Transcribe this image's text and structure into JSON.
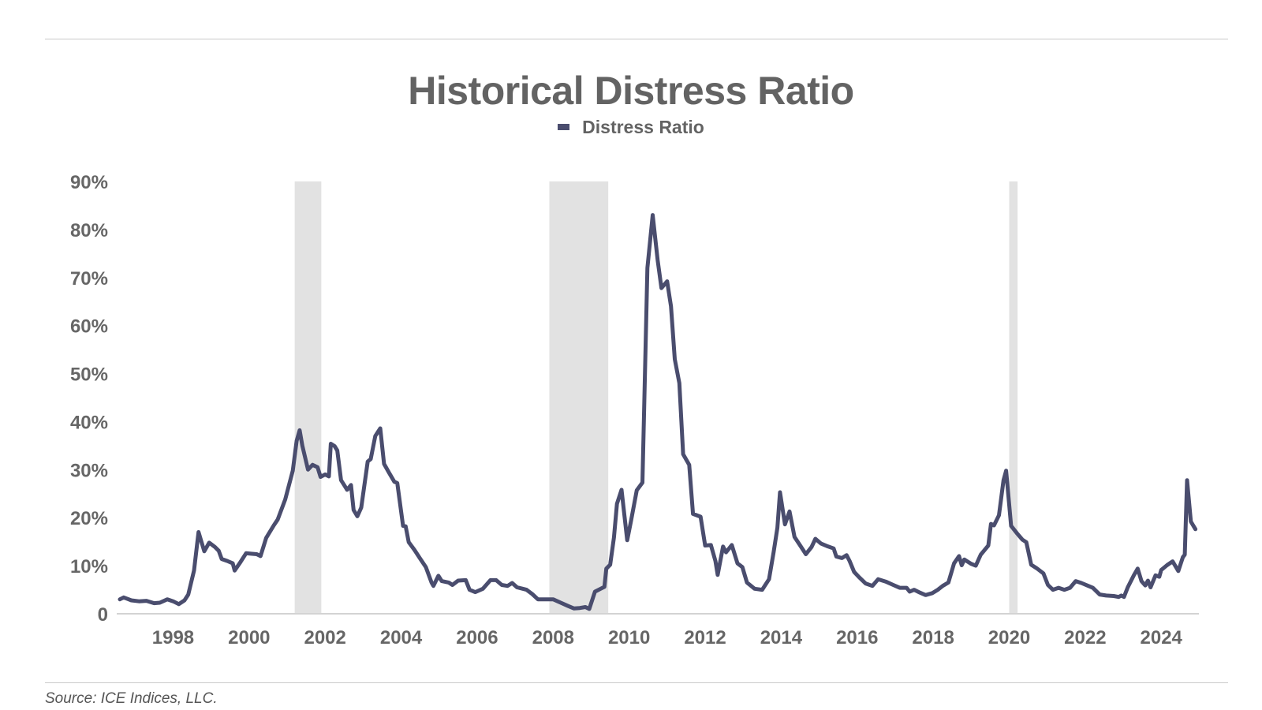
{
  "title": "Historical Distress Ratio",
  "source": "Source: ICE Indices, LLC.",
  "colors": {
    "line": "#4a4d6e",
    "recession": "#e2e2e2",
    "axis": "#d3d3d3"
  },
  "chart_data": {
    "type": "line",
    "title": "Historical Distress Ratio",
    "legend": {
      "position": "top-center",
      "entries": [
        "Distress Ratio"
      ]
    },
    "grid": false,
    "xlim": [
      1996.6,
      2024.95
    ],
    "ylim": [
      0,
      90
    ],
    "x_ticks": [
      1998,
      2000,
      2002,
      2004,
      2006,
      2008,
      2010,
      2012,
      2014,
      2016,
      2018,
      2020,
      2022,
      2024
    ],
    "y_ticks": [
      {
        "value": 0,
        "label": "0"
      },
      {
        "value": 10,
        "label": "10%"
      },
      {
        "value": 20,
        "label": "20%"
      },
      {
        "value": 30,
        "label": "30%"
      },
      {
        "value": 40,
        "label": "40%"
      },
      {
        "value": 50,
        "label": "50%"
      },
      {
        "value": 60,
        "label": "60%"
      },
      {
        "value": 70,
        "label": "70%"
      },
      {
        "value": 80,
        "label": "80%"
      },
      {
        "value": 90,
        "label": "90%"
      }
    ],
    "shaded_periods": [
      {
        "start": 2001.2,
        "end": 2001.9
      },
      {
        "start": 2007.9,
        "end": 2009.45
      },
      {
        "start": 2020.0,
        "end": 2020.22
      }
    ],
    "series": [
      {
        "name": "Distress Ratio",
        "points": [
          [
            1996.6,
            3.0
          ],
          [
            1996.7,
            3.4
          ],
          [
            1996.9,
            2.8
          ],
          [
            1997.1,
            2.6
          ],
          [
            1997.3,
            2.7
          ],
          [
            1997.5,
            2.2
          ],
          [
            1997.65,
            2.3
          ],
          [
            1997.85,
            3.0
          ],
          [
            1998.0,
            2.6
          ],
          [
            1998.15,
            2.0
          ],
          [
            1998.3,
            2.8
          ],
          [
            1998.4,
            4.0
          ],
          [
            1998.55,
            9.0
          ],
          [
            1998.67,
            17.0
          ],
          [
            1998.82,
            13.0
          ],
          [
            1998.95,
            14.8
          ],
          [
            1999.1,
            13.9
          ],
          [
            1999.2,
            13.1
          ],
          [
            1999.28,
            11.4
          ],
          [
            1999.42,
            11.0
          ],
          [
            1999.57,
            10.5
          ],
          [
            1999.62,
            9.0
          ],
          [
            1999.75,
            10.5
          ],
          [
            1999.92,
            12.6
          ],
          [
            2000.05,
            12.5
          ],
          [
            2000.2,
            12.4
          ],
          [
            2000.3,
            12.0
          ],
          [
            2000.45,
            15.8
          ],
          [
            2000.65,
            18.4
          ],
          [
            2000.75,
            19.6
          ],
          [
            2000.95,
            23.8
          ],
          [
            2001.15,
            29.8
          ],
          [
            2001.25,
            36.0
          ],
          [
            2001.33,
            38.2
          ],
          [
            2001.4,
            35.0
          ],
          [
            2001.55,
            30.0
          ],
          [
            2001.67,
            31.0
          ],
          [
            2001.8,
            30.5
          ],
          [
            2001.88,
            28.5
          ],
          [
            2002.0,
            29.0
          ],
          [
            2002.1,
            28.6
          ],
          [
            2002.15,
            35.4
          ],
          [
            2002.25,
            34.9
          ],
          [
            2002.32,
            34.0
          ],
          [
            2002.42,
            27.8
          ],
          [
            2002.5,
            26.8
          ],
          [
            2002.58,
            25.8
          ],
          [
            2002.68,
            26.8
          ],
          [
            2002.75,
            21.6
          ],
          [
            2002.85,
            20.3
          ],
          [
            2002.95,
            22.1
          ],
          [
            2003.12,
            31.7
          ],
          [
            2003.2,
            32.2
          ],
          [
            2003.32,
            37.0
          ],
          [
            2003.45,
            38.6
          ],
          [
            2003.55,
            31.2
          ],
          [
            2003.68,
            29.4
          ],
          [
            2003.82,
            27.5
          ],
          [
            2003.9,
            27.2
          ],
          [
            2004.05,
            18.3
          ],
          [
            2004.12,
            18.2
          ],
          [
            2004.2,
            14.9
          ],
          [
            2004.35,
            13.3
          ],
          [
            2004.5,
            11.5
          ],
          [
            2004.65,
            9.7
          ],
          [
            2004.8,
            6.5
          ],
          [
            2004.85,
            5.8
          ],
          [
            2004.98,
            7.9
          ],
          [
            2005.07,
            6.8
          ],
          [
            2005.25,
            6.5
          ],
          [
            2005.35,
            6.0
          ],
          [
            2005.5,
            6.9
          ],
          [
            2005.7,
            7.0
          ],
          [
            2005.8,
            5.0
          ],
          [
            2005.95,
            4.5
          ],
          [
            2006.15,
            5.2
          ],
          [
            2006.35,
            7.0
          ],
          [
            2006.5,
            7.0
          ],
          [
            2006.65,
            6.0
          ],
          [
            2006.8,
            5.8
          ],
          [
            2006.92,
            6.4
          ],
          [
            2007.05,
            5.5
          ],
          [
            2007.2,
            5.2
          ],
          [
            2007.3,
            5.0
          ],
          [
            2007.45,
            4.1
          ],
          [
            2007.6,
            3.0
          ],
          [
            2007.8,
            3.0
          ],
          [
            2008.0,
            3.0
          ],
          [
            2008.2,
            2.3
          ],
          [
            2008.4,
            1.6
          ],
          [
            2008.55,
            1.1
          ],
          [
            2008.7,
            1.2
          ],
          [
            2008.85,
            1.4
          ],
          [
            2008.95,
            1.0
          ],
          [
            2009.1,
            4.6
          ],
          [
            2009.25,
            5.2
          ],
          [
            2009.35,
            5.6
          ],
          [
            2009.4,
            9.4
          ],
          [
            2009.5,
            10.2
          ],
          [
            2009.6,
            15.9
          ],
          [
            2009.68,
            22.9
          ],
          [
            2009.8,
            25.8
          ],
          [
            2009.95,
            15.3
          ],
          [
            2010.05,
            19.4
          ],
          [
            2010.2,
            25.7
          ],
          [
            2010.35,
            27.3
          ],
          [
            2010.48,
            72.0
          ],
          [
            2010.62,
            83.0
          ],
          [
            2010.75,
            73.6
          ],
          [
            2010.85,
            67.8
          ],
          [
            2011.0,
            69.2
          ],
          [
            2011.1,
            64.0
          ],
          [
            2011.2,
            53.0
          ],
          [
            2011.32,
            48.0
          ],
          [
            2011.42,
            33.2
          ],
          [
            2011.58,
            31.0
          ],
          [
            2011.68,
            20.8
          ],
          [
            2011.88,
            20.2
          ],
          [
            2012.0,
            14.2
          ],
          [
            2012.15,
            14.3
          ],
          [
            2012.27,
            11.0
          ],
          [
            2012.33,
            8.1
          ],
          [
            2012.47,
            14.0
          ],
          [
            2012.55,
            12.8
          ],
          [
            2012.7,
            14.3
          ],
          [
            2012.85,
            10.5
          ],
          [
            2012.98,
            9.7
          ],
          [
            2013.1,
            6.5
          ],
          [
            2013.3,
            5.2
          ],
          [
            2013.5,
            5.0
          ],
          [
            2013.68,
            7.2
          ],
          [
            2013.8,
            12.8
          ],
          [
            2013.9,
            17.9
          ],
          [
            2013.97,
            25.3
          ],
          [
            2014.1,
            18.6
          ],
          [
            2014.22,
            21.3
          ],
          [
            2014.35,
            16.0
          ],
          [
            2014.5,
            14.2
          ],
          [
            2014.65,
            12.4
          ],
          [
            2014.8,
            13.9
          ],
          [
            2014.9,
            15.6
          ],
          [
            2015.05,
            14.6
          ],
          [
            2015.2,
            14.1
          ],
          [
            2015.38,
            13.6
          ],
          [
            2015.45,
            11.9
          ],
          [
            2015.6,
            11.6
          ],
          [
            2015.72,
            12.2
          ],
          [
            2015.8,
            11.0
          ],
          [
            2015.92,
            8.7
          ],
          [
            2016.05,
            7.6
          ],
          [
            2016.22,
            6.3
          ],
          [
            2016.4,
            5.8
          ],
          [
            2016.55,
            7.2
          ],
          [
            2016.75,
            6.7
          ],
          [
            2016.95,
            6.0
          ],
          [
            2017.12,
            5.4
          ],
          [
            2017.3,
            5.4
          ],
          [
            2017.38,
            4.6
          ],
          [
            2017.5,
            5.0
          ],
          [
            2017.65,
            4.4
          ],
          [
            2017.8,
            3.9
          ],
          [
            2017.98,
            4.3
          ],
          [
            2018.12,
            5.0
          ],
          [
            2018.25,
            5.8
          ],
          [
            2018.4,
            6.5
          ],
          [
            2018.55,
            10.5
          ],
          [
            2018.68,
            12.0
          ],
          [
            2018.75,
            10.1
          ],
          [
            2018.82,
            11.3
          ],
          [
            2019.0,
            10.4
          ],
          [
            2019.12,
            10.0
          ],
          [
            2019.25,
            12.3
          ],
          [
            2019.45,
            14.2
          ],
          [
            2019.52,
            18.7
          ],
          [
            2019.6,
            18.4
          ],
          [
            2019.73,
            20.5
          ],
          [
            2019.85,
            27.8
          ],
          [
            2019.92,
            29.8
          ],
          [
            2020.05,
            18.3
          ],
          [
            2020.2,
            16.8
          ],
          [
            2020.35,
            15.4
          ],
          [
            2020.45,
            14.9
          ],
          [
            2020.58,
            10.2
          ],
          [
            2020.72,
            9.5
          ],
          [
            2020.9,
            8.4
          ],
          [
            2021.02,
            6.0
          ],
          [
            2021.15,
            5.0
          ],
          [
            2021.3,
            5.4
          ],
          [
            2021.45,
            5.0
          ],
          [
            2021.6,
            5.4
          ],
          [
            2021.75,
            6.8
          ],
          [
            2021.9,
            6.4
          ],
          [
            2022.05,
            5.9
          ],
          [
            2022.2,
            5.4
          ],
          [
            2022.38,
            4.0
          ],
          [
            2022.55,
            3.8
          ],
          [
            2022.75,
            3.7
          ],
          [
            2022.88,
            3.5
          ],
          [
            2022.95,
            3.8
          ],
          [
            2023.02,
            3.5
          ],
          [
            2023.12,
            5.5
          ],
          [
            2023.28,
            8.0
          ],
          [
            2023.38,
            9.4
          ],
          [
            2023.48,
            6.8
          ],
          [
            2023.58,
            5.9
          ],
          [
            2023.65,
            6.9
          ],
          [
            2023.72,
            5.5
          ],
          [
            2023.85,
            8.0
          ],
          [
            2023.95,
            7.7
          ],
          [
            2024.0,
            9.1
          ],
          [
            2024.15,
            10.1
          ],
          [
            2024.3,
            10.9
          ],
          [
            2024.45,
            8.9
          ],
          [
            2024.57,
            11.8
          ],
          [
            2024.62,
            12.3
          ],
          [
            2024.68,
            27.8
          ],
          [
            2024.78,
            19.2
          ],
          [
            2024.9,
            17.6
          ]
        ]
      }
    ]
  }
}
